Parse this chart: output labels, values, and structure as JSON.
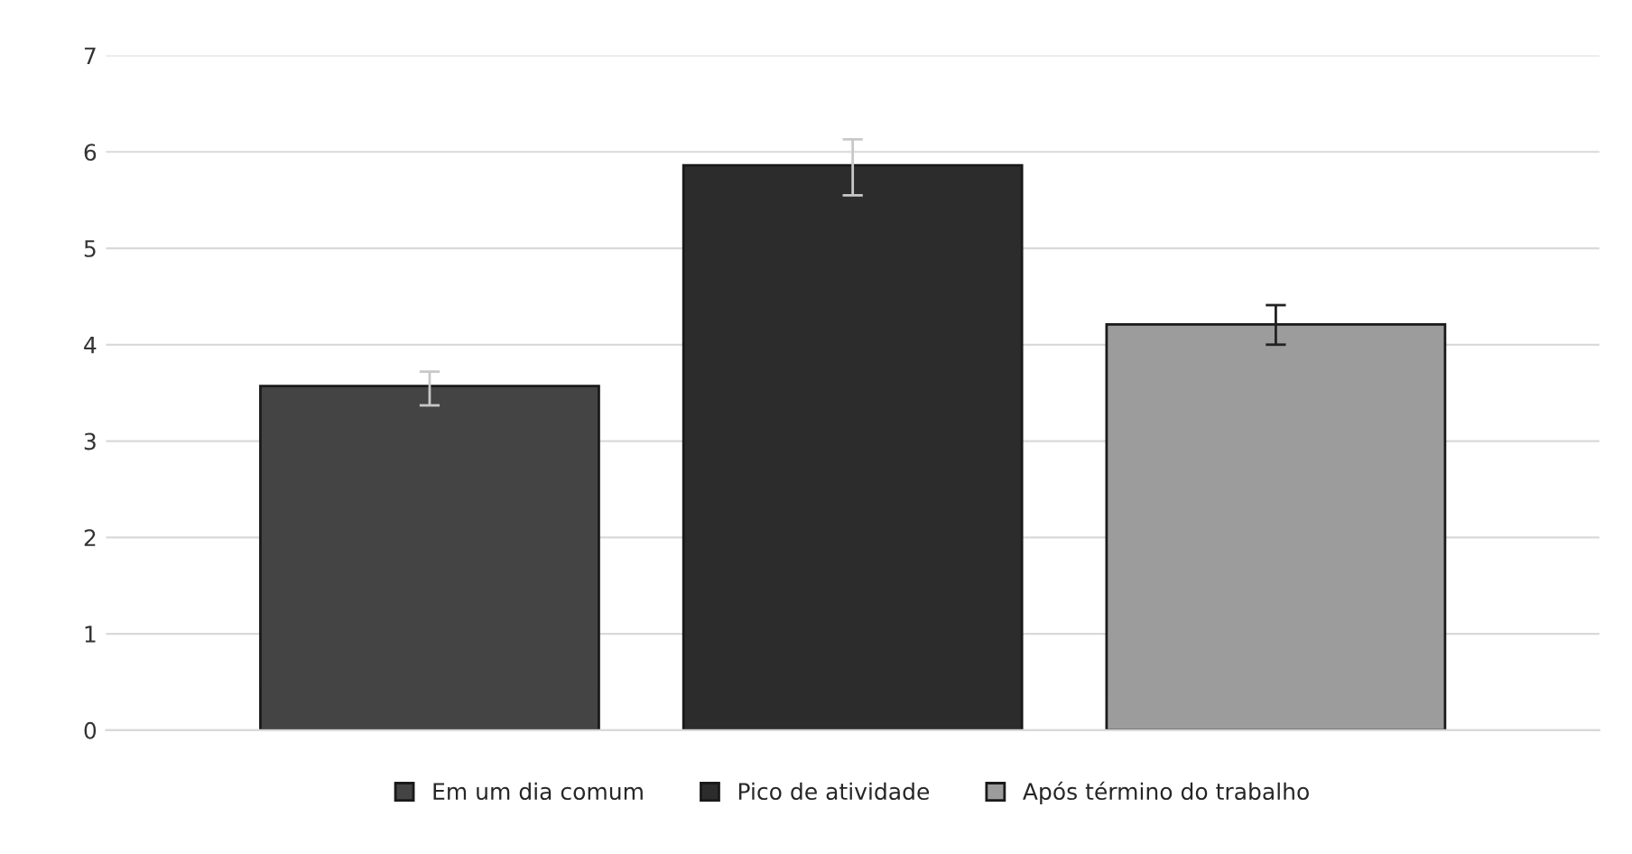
{
  "chart_data": {
    "type": "bar",
    "categories": [
      null
    ],
    "series": [
      {
        "name": "Em um dia comum",
        "color": "#444444",
        "values": [
          3.57
        ],
        "errors": [
          [
            3.37,
            3.72
          ]
        ]
      },
      {
        "name": "Pico de atividade",
        "color": "#2d2c2c",
        "values": [
          5.86
        ],
        "errors": [
          [
            5.55,
            6.13
          ]
        ]
      },
      {
        "name": "Após término do trabalho",
        "color": "#9c9c9c",
        "values": [
          4.21
        ],
        "errors": [
          [
            4.0,
            4.41
          ]
        ]
      }
    ],
    "ylim": [
      0,
      7
    ],
    "yticks": [
      0,
      1,
      2,
      3,
      4,
      5,
      6,
      7
    ],
    "grid": "y",
    "legend": "bottom"
  }
}
